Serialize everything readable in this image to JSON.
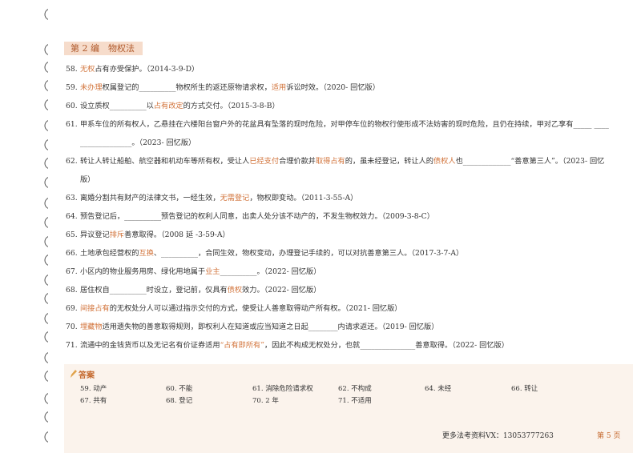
{
  "section_title": "第 2 编　物权法",
  "items": [
    {
      "number": "58.",
      "parts": [
        {
          "text": "无权",
          "highlight": true
        },
        {
          "text": "占有亦受保护。（2014-3-9-D）"
        }
      ]
    },
    {
      "number": "59.",
      "parts": [
        {
          "text": "未办理",
          "highlight": true
        },
        {
          "text": "权属登记的__________物权所生的返还原物请求权，"
        },
        {
          "text": "适用",
          "highlight": true
        },
        {
          "text": "诉讼时效。（2020- 回忆版）"
        }
      ]
    },
    {
      "number": "60.",
      "parts": [
        {
          "text": "设立质权__________以"
        },
        {
          "text": "占有改定",
          "highlight": true
        },
        {
          "text": "的方式交付。（2015-3-8-B）"
        }
      ]
    },
    {
      "number": "61.",
      "parts": [
        {
          "text": "甲系车位的所有权人，乙悬挂在六楼阳台窗户外的花盆具有坠落的现时危险，对甲停车位的物权行使形成不法妨害的现时危险，且仍在持续，甲对乙享有_____ __________________。（2023- 回忆版）"
        }
      ]
    },
    {
      "number": "62.",
      "parts": [
        {
          "text": "转让人转让船舶、航空器和机动车等所有权，受让人"
        },
        {
          "text": "已经支付",
          "highlight": true
        },
        {
          "text": "合理价款并"
        },
        {
          "text": "取得占有",
          "highlight": true
        },
        {
          "text": "的，虽未经登记，转让人的"
        },
        {
          "text": "债权人",
          "highlight": true
        },
        {
          "text": "也_____________“善意第三人”。（2023- 回忆版）"
        }
      ]
    },
    {
      "number": "63.",
      "parts": [
        {
          "text": "离婚分割共有财产的法律文书，一经生效，"
        },
        {
          "text": "无需登记",
          "highlight": true
        },
        {
          "text": "，物权即变动。（2011-3-55-A）"
        }
      ]
    },
    {
      "number": "64.",
      "parts": [
        {
          "text": "预告登记后，__________预告登记的权利人同意，出卖人处分该不动产的，不发生物权效力。（2009-3-8-C）"
        }
      ]
    },
    {
      "number": "65.",
      "parts": [
        {
          "text": "异议登记"
        },
        {
          "text": "排斥",
          "highlight": true
        },
        {
          "text": "善意取得。（2008 延 -3-59-A）"
        }
      ]
    },
    {
      "number": "66.",
      "parts": [
        {
          "text": "土地承包经营权的"
        },
        {
          "text": "互换",
          "highlight": true
        },
        {
          "text": "、__________，合同生效，物权变动，办理登记手续的，可以对抗善意第三人。（2017-3-7-A）"
        }
      ]
    },
    {
      "number": "67.",
      "parts": [
        {
          "text": "小区内的物业服务用房、绿化用地属于"
        },
        {
          "text": "业主",
          "highlight": true
        },
        {
          "text": "__________。（2022- 回忆版）"
        }
      ]
    },
    {
      "number": "68.",
      "parts": [
        {
          "text": "居住权自__________时设立，登记前，仅具有"
        },
        {
          "text": "债权",
          "highlight": true
        },
        {
          "text": "效力。（2022- 回忆版）"
        }
      ]
    },
    {
      "number": "69.",
      "parts": [
        {
          "text": "间接占有",
          "highlight": true
        },
        {
          "text": "的无权处分人可以通过指示交付的方式，使受让人善意取得动产所有权。（2021- 回忆版）"
        }
      ]
    },
    {
      "number": "70.",
      "parts": [
        {
          "text": "埋藏物",
          "highlight": true
        },
        {
          "text": "适用遗失物的善意取得规则，即权利人在知道或应当知道之日起________内请求返还。（2019- 回忆版）"
        }
      ]
    },
    {
      "number": "71.",
      "parts": [
        {
          "text": "流通中的金钱货币以及无记名有价证券适用"
        },
        {
          "text": "“占有即所有”",
          "highlight": true
        },
        {
          "text": "，因此不构成无权处分，也就_______________善意取得。（2022- 回忆版）"
        }
      ]
    }
  ],
  "answers": {
    "title": "答案",
    "entries": [
      "59. 动产",
      "60. 不能",
      "61. 消除危险请求权",
      "62. 不构成",
      "64. 未经",
      "66. 转让",
      "67. 共有",
      "68. 登记",
      "70. 2 年",
      "71. 不适用"
    ]
  },
  "footer": {
    "contact": "更多法考资料VX：13053777263",
    "page": "第 5 页"
  }
}
